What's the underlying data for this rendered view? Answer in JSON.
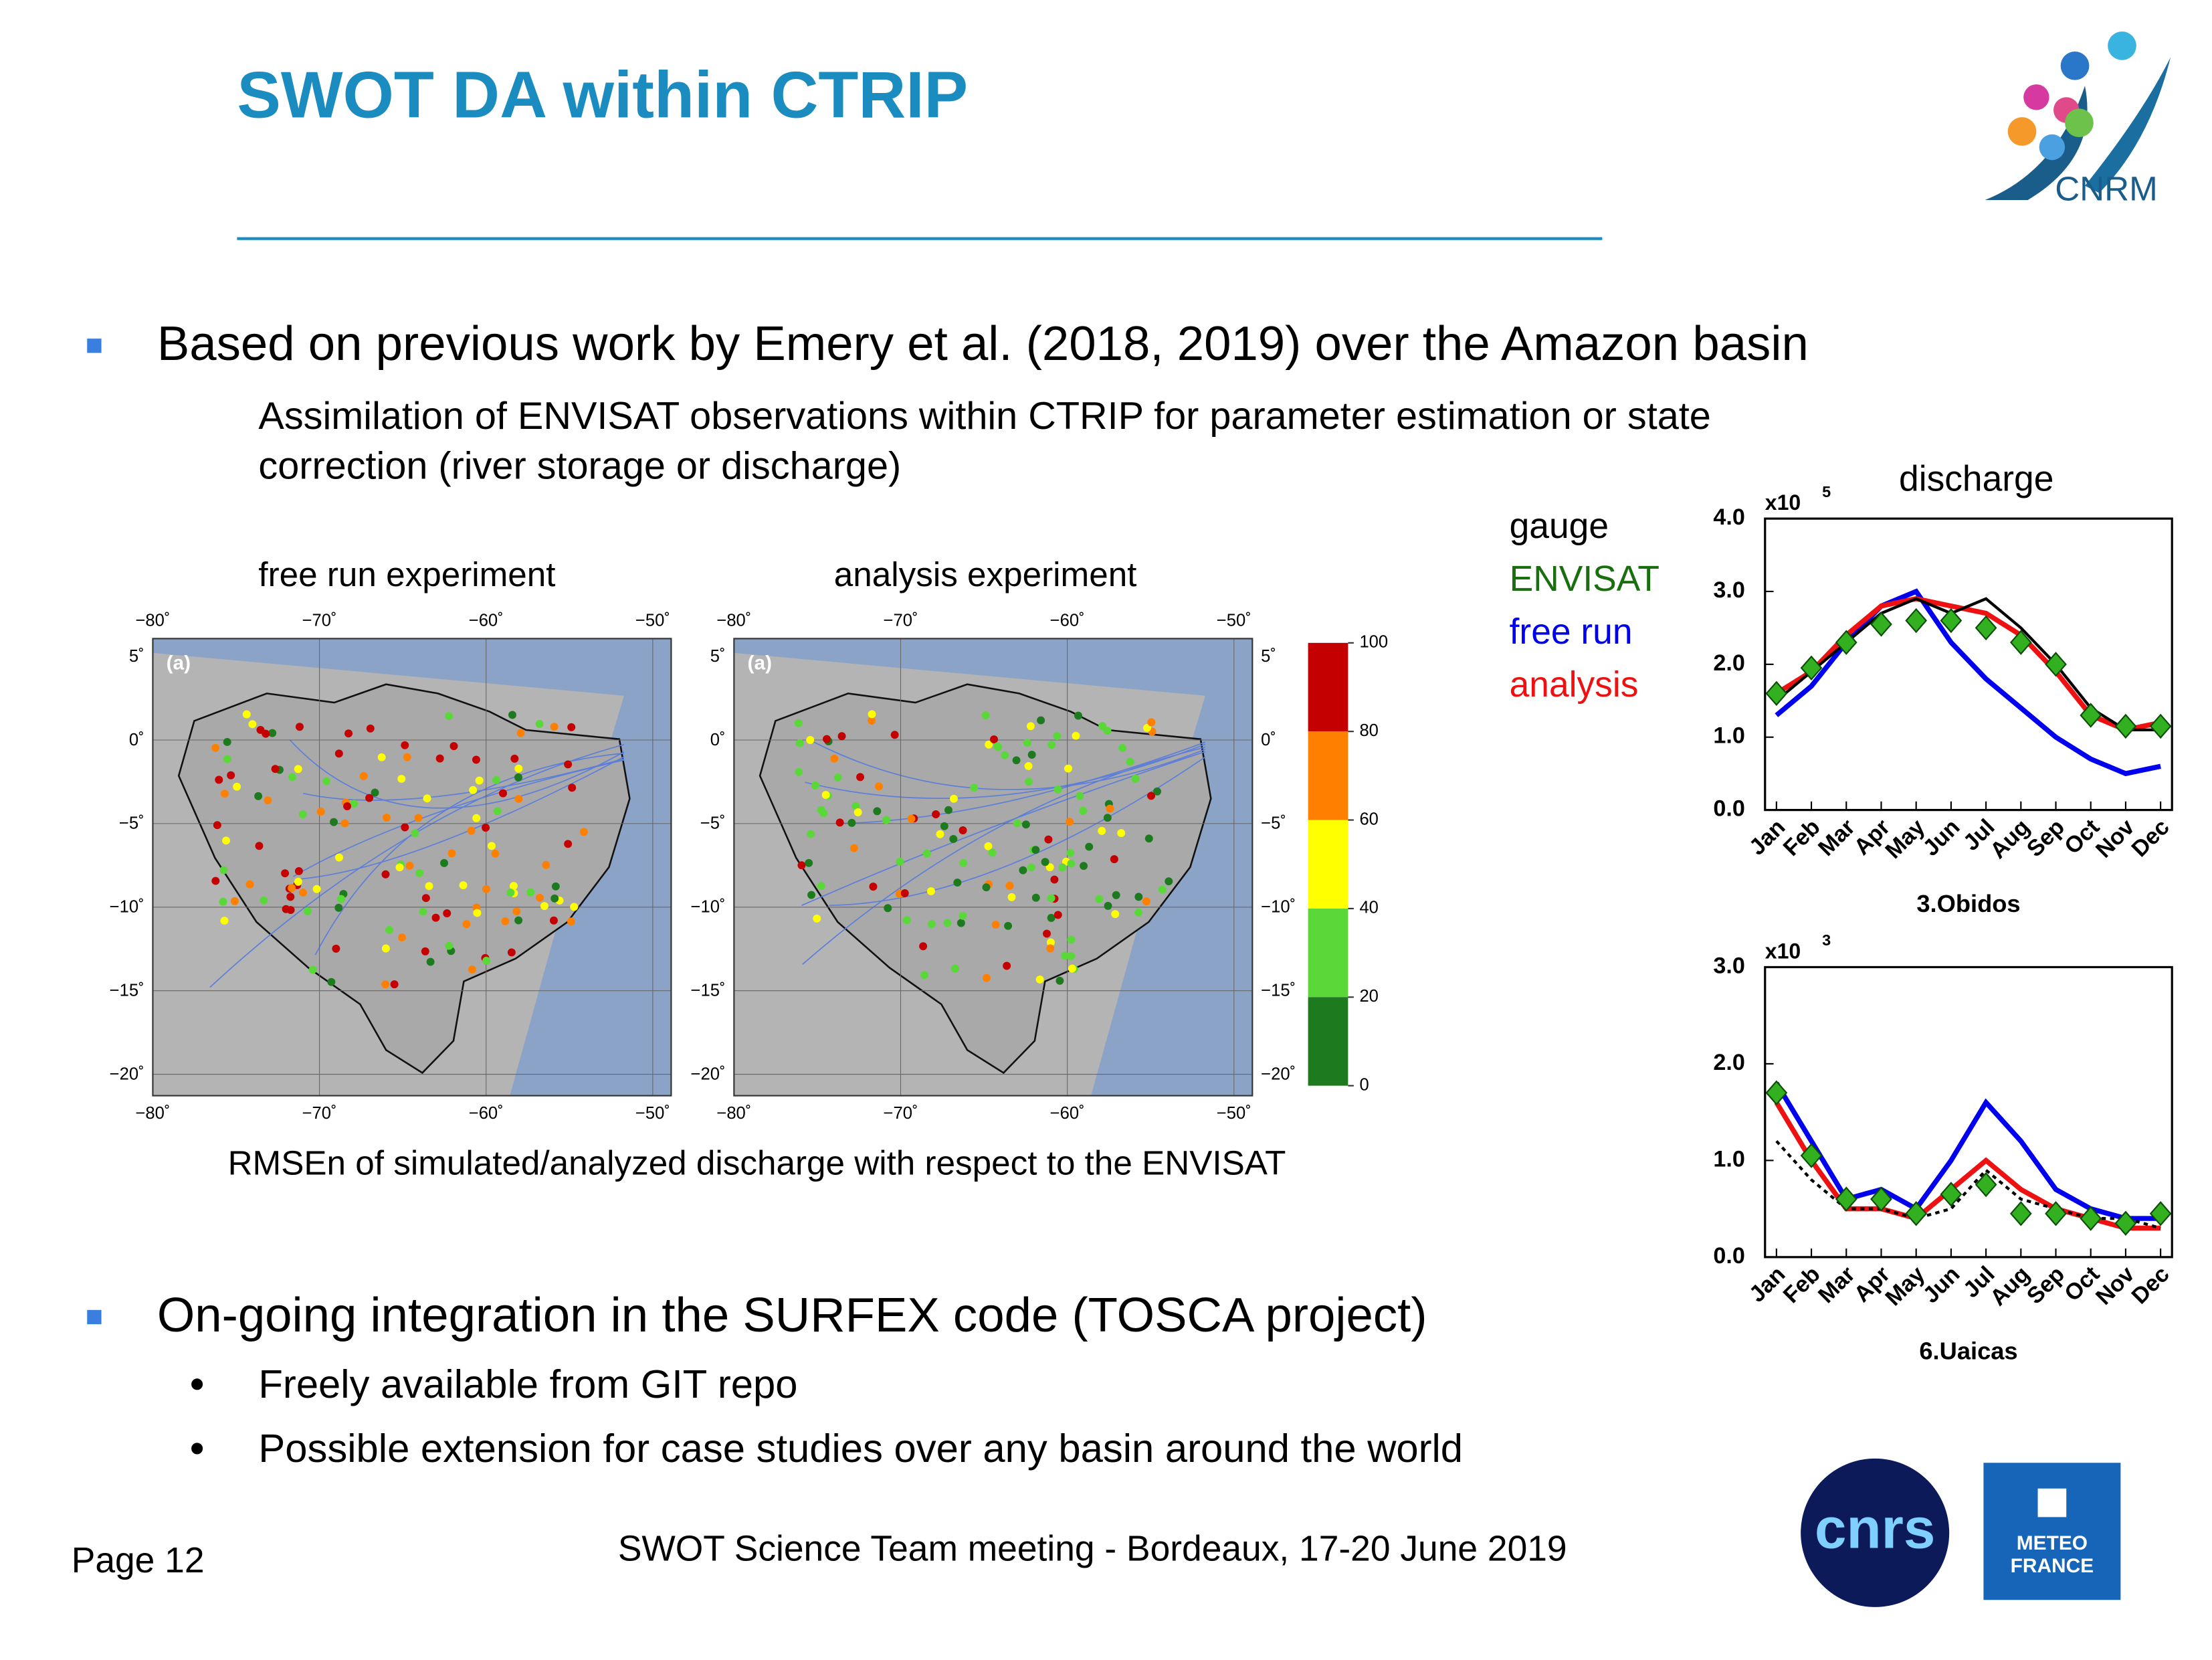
{
  "header": {
    "title": "SWOT DA within CTRIP"
  },
  "intro": {
    "text": "Based on previous work by Emery et al. (2018, 2019) over the Amazon basin",
    "detail": [
      "Assimilation of ENVISAT observations within CTRIP for parameter estimation or state",
      "correction (river storage or discharge)"
    ]
  },
  "maps": {
    "panels": [
      {
        "title": "free run experiment",
        "tag": "(a)"
      },
      {
        "title": "analysis experiment",
        "tag": "(a)"
      }
    ],
    "lon_labels": [
      "−80˚",
      "−70˚",
      "−60˚",
      "−50˚"
    ],
    "lat_labels": [
      "5˚",
      "0˚",
      "−5˚",
      "−10˚",
      "−15˚",
      "−20˚"
    ],
    "colorbar": {
      "ticks": [
        100,
        80,
        60,
        40,
        20,
        0
      ],
      "colors": [
        "#c40000",
        "#ff8000",
        "#ffff00",
        "#5ad83a",
        "#1e7a1e"
      ]
    },
    "caption": "RMSEn of simulated/analyzed discharge with respect to the ENVISAT"
  },
  "hydrographs": {
    "title": "discharge",
    "months": [
      "Jan",
      "Feb",
      "Mar",
      "Apr",
      "May",
      "Jun",
      "Jul",
      "Aug",
      "Sep",
      "Oct",
      "Nov",
      "Dec"
    ],
    "charts": [
      {
        "station": "3.Obidos",
        "multiplier": "x10",
        "exponent": 5,
        "ylim": [
          0,
          4
        ],
        "yticks": [
          {
            "value": 0,
            "label": "0.0"
          },
          {
            "value": 1,
            "label": "1.0"
          },
          {
            "value": 2,
            "label": "2.0"
          },
          {
            "value": 3,
            "label": "3.0"
          },
          {
            "value": 4,
            "label": "4.0"
          }
        ],
        "series": [
          {
            "name": "gauge",
            "color": "#000000",
            "values": [
              1.5,
              1.9,
              2.3,
              2.7,
              2.9,
              2.7,
              2.9,
              2.5,
              2.0,
              1.4,
              1.1,
              1.1
            ]
          },
          {
            "name": "ENVISAT",
            "color": "#2a9a1e",
            "values": [
              1.6,
              1.95,
              2.3,
              2.55,
              2.6,
              2.6,
              2.5,
              2.3,
              2.0,
              1.3,
              1.15,
              1.15
            ]
          },
          {
            "name": "free run",
            "color": "#0000ee",
            "values": [
              1.3,
              1.7,
              2.3,
              2.8,
              3.0,
              2.3,
              1.8,
              1.4,
              1.0,
              0.7,
              0.5,
              0.6
            ]
          },
          {
            "name": "analysis",
            "color": "#ee1111",
            "values": [
              1.6,
              1.9,
              2.4,
              2.8,
              2.9,
              2.8,
              2.7,
              2.4,
              1.9,
              1.3,
              1.1,
              1.2
            ]
          }
        ]
      },
      {
        "station": "6.Uaicas",
        "multiplier": "x10",
        "exponent": 3,
        "ylim": [
          0,
          3
        ],
        "yticks": [
          {
            "value": 0,
            "label": "0.0"
          },
          {
            "value": 1,
            "label": "1.0"
          },
          {
            "value": 2,
            "label": "2.0"
          },
          {
            "value": 3,
            "label": "3.0"
          }
        ],
        "series": [
          {
            "values": [
              1.2,
              0.8,
              0.5,
              0.5,
              0.4,
              0.5,
              0.9,
              0.6,
              0.5,
              0.4,
              0.4,
              0.3
            ]
          },
          {
            "values": [
              1.7,
              1.05,
              0.6,
              0.6,
              0.45,
              0.65,
              0.75,
              0.45,
              0.45,
              0.4,
              0.35,
              0.45
            ]
          },
          {
            "values": [
              1.8,
              1.2,
              0.6,
              0.7,
              0.5,
              1.0,
              1.6,
              1.2,
              0.7,
              0.5,
              0.4,
              0.4
            ]
          },
          {
            "values": [
              1.6,
              1.0,
              0.5,
              0.5,
              0.4,
              0.7,
              1.0,
              0.7,
              0.5,
              0.4,
              0.3,
              0.3
            ]
          }
        ]
      }
    ]
  },
  "ongoing": {
    "text": "On-going integration in the SURFEX code (TOSCA project)",
    "items": [
      "Freely available from GIT repo",
      "Possible extension for case studies over any basin around the world"
    ]
  },
  "footer": {
    "page": "Page 12",
    "meeting": "SWOT Science Team meeting - Bordeaux, 17-20 June 2019"
  },
  "logos": {
    "cnrm": "CNRM",
    "cnrs": "cnrs",
    "meteo": [
      "METEO",
      "FRANCE"
    ]
  }
}
